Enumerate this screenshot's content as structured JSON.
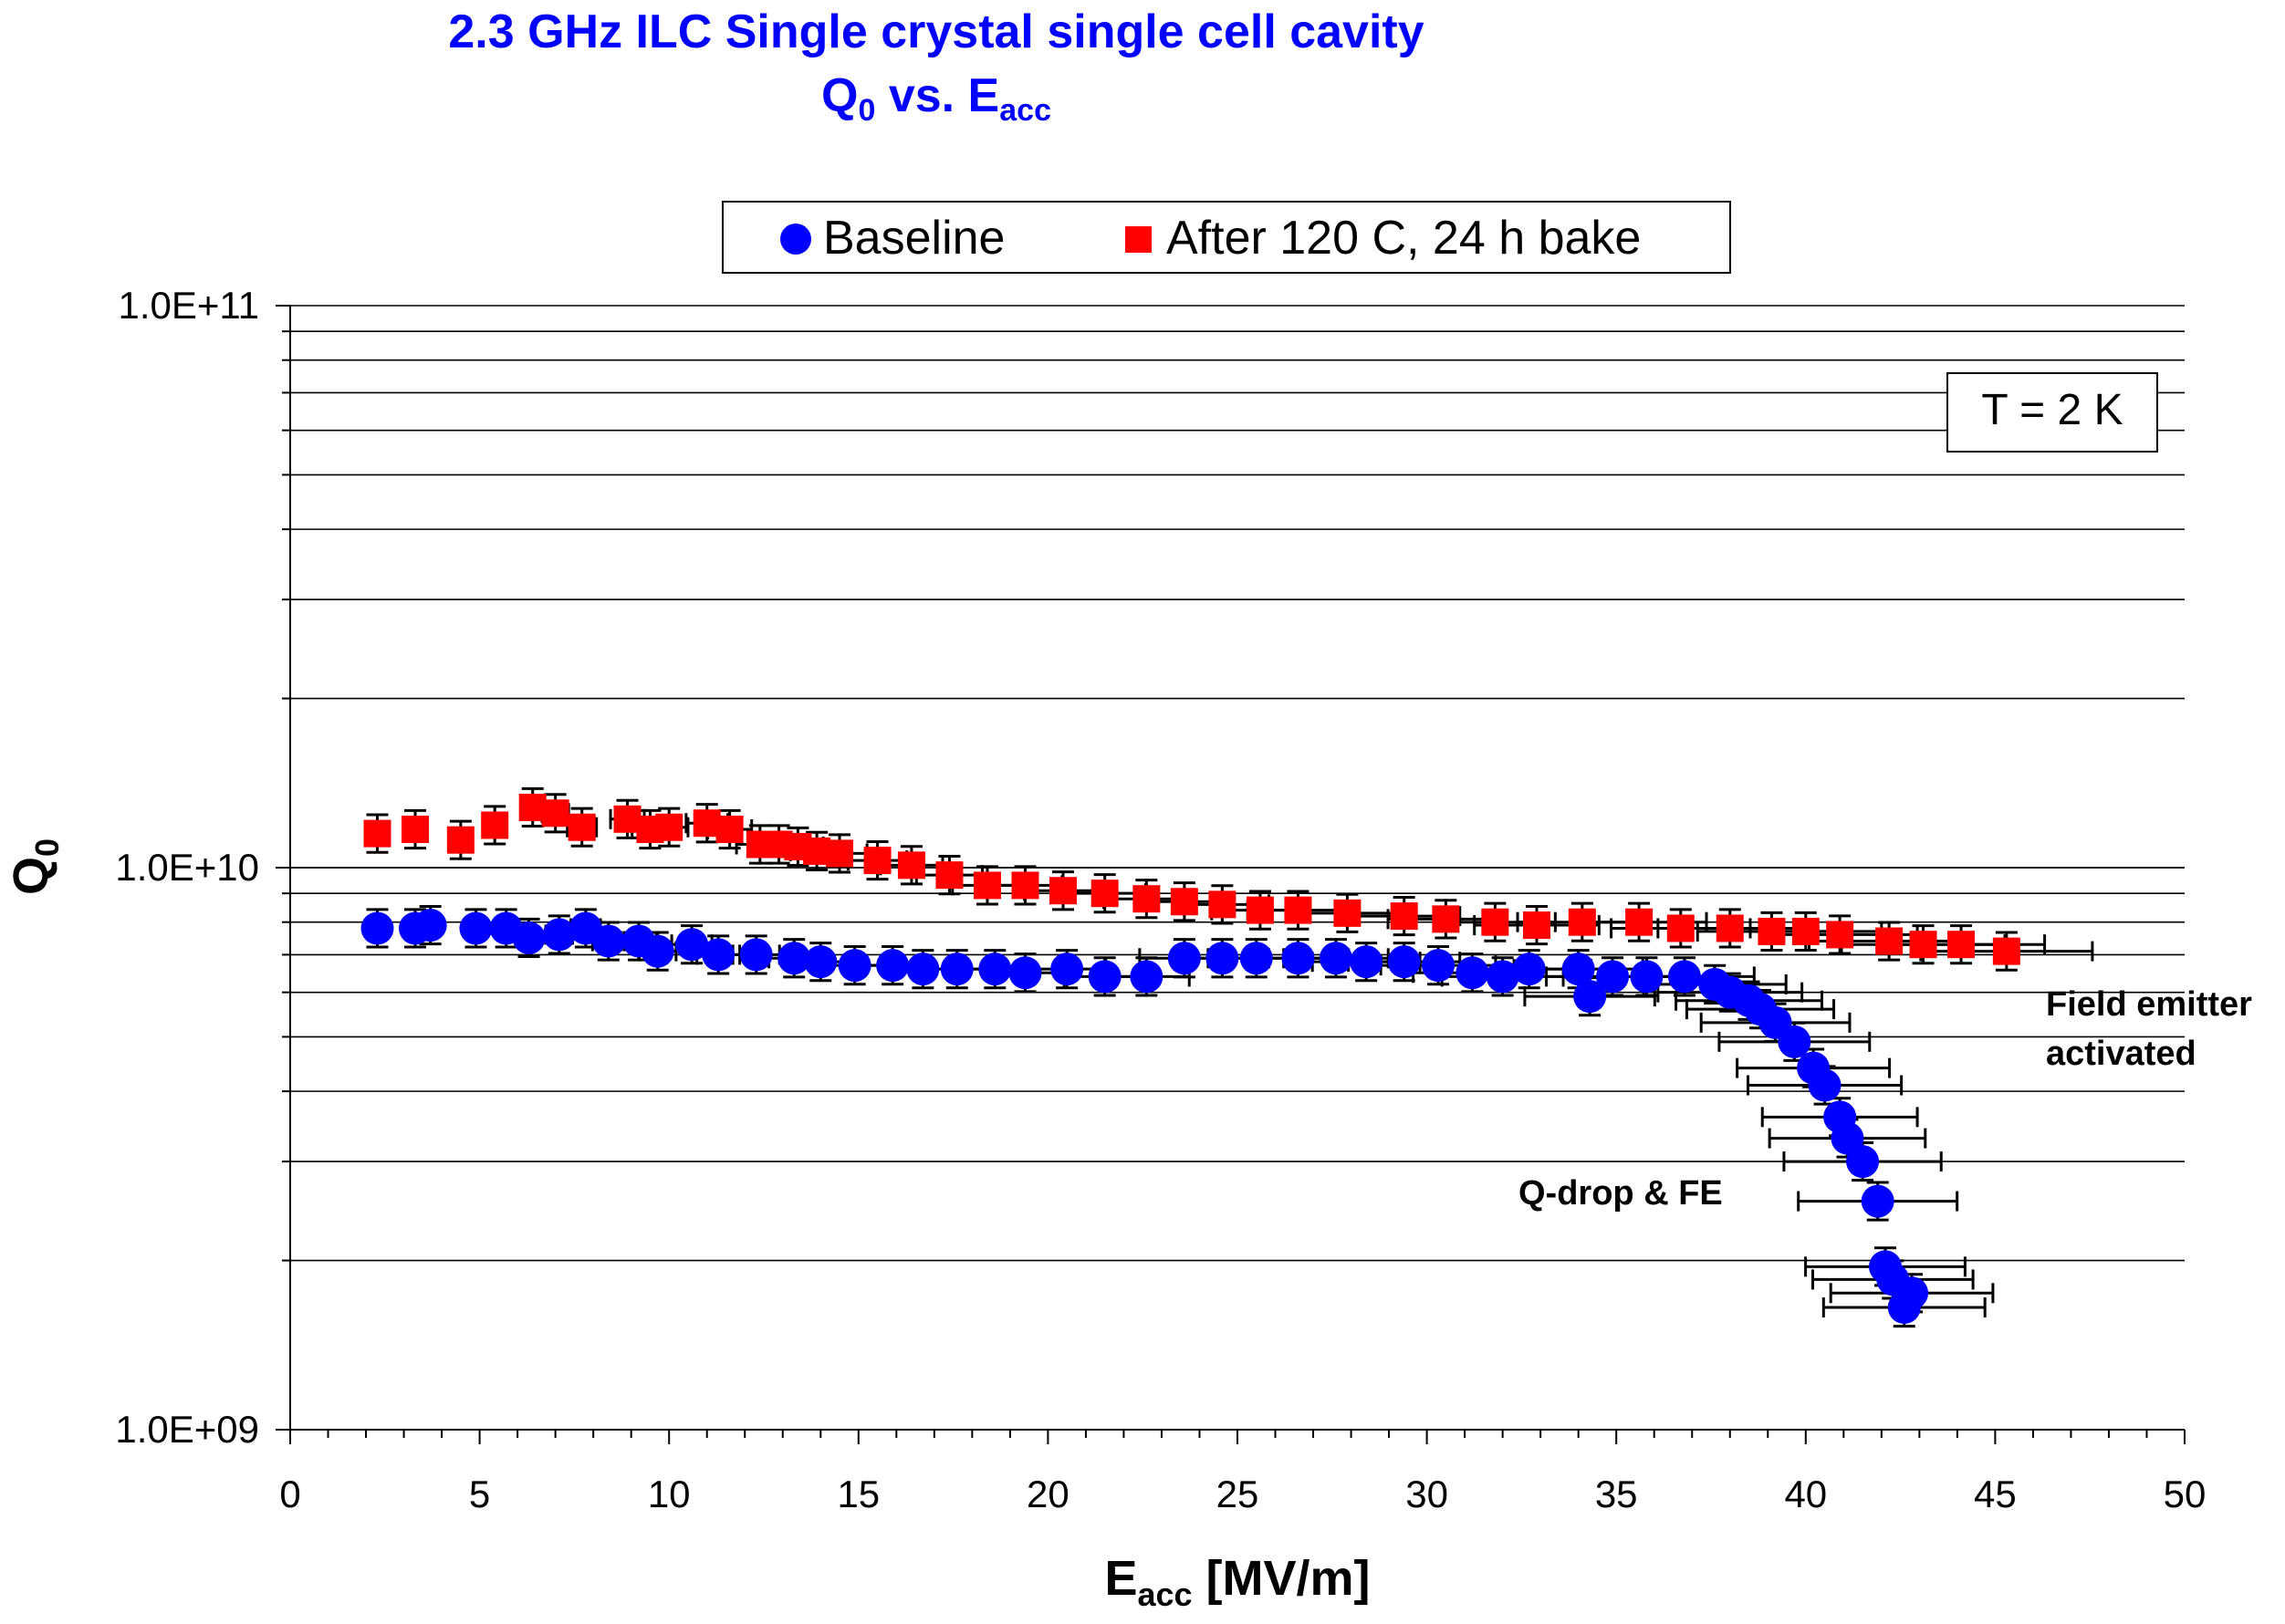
{
  "chart_data": {
    "type": "scatter",
    "title": "2.3 GHz ILC Single crystal single cell cavity",
    "subtitle": {
      "main": "Q",
      "sub": "0",
      "mid": " vs. E",
      "sub2": "acc"
    },
    "xlabel": {
      "main": "E",
      "sub": "acc",
      "rest": " [MV/m]"
    },
    "ylabel": {
      "main": "Q",
      "sub": "0"
    },
    "xlim": [
      0,
      50
    ],
    "ylim": [
      1000000000,
      100000000000
    ],
    "yscale": "log",
    "x_ticks": [
      "0",
      "5",
      "10",
      "15",
      "20",
      "25",
      "30",
      "35",
      "40",
      "45",
      "50"
    ],
    "y_ticks": [
      "1.0E+09",
      "1.0E+10",
      "1.0E+11"
    ],
    "grid": "horizontal",
    "legend_position": "top-center",
    "temperature_label": "T = 2 K",
    "annotations": {
      "field_emitter_line1": "Field emitter",
      "field_emitter_line2": "activated",
      "qdrop": "Q-drop & FE"
    },
    "series": [
      {
        "name": "Baseline",
        "marker": "circle",
        "color": "#0000ff",
        "points": [
          [
            2.3,
            7800000000.0
          ],
          [
            3.3,
            7800000000.0
          ],
          [
            3.7,
            7900000000.0
          ],
          [
            4.9,
            7800000000.0
          ],
          [
            5.7,
            7800000000.0
          ],
          [
            6.3,
            7500000000.0
          ],
          [
            7.1,
            7600000000.0
          ],
          [
            7.8,
            7800000000.0
          ],
          [
            8.4,
            7400000000.0
          ],
          [
            9.2,
            7400000000.0
          ],
          [
            9.7,
            7100000000.0
          ],
          [
            10.6,
            7300000000.0
          ],
          [
            11.3,
            7000000000.0
          ],
          [
            12.3,
            7000000000.0
          ],
          [
            13.3,
            6900000000.0
          ],
          [
            14.0,
            6800000000.0
          ],
          [
            14.9,
            6700000000.0
          ],
          [
            15.9,
            6700000000.0
          ],
          [
            16.7,
            6600000000.0
          ],
          [
            17.6,
            6600000000.0
          ],
          [
            18.6,
            6600000000.0
          ],
          [
            19.4,
            6500000000.0
          ],
          [
            20.5,
            6600000000.0
          ],
          [
            21.5,
            6400000000.0
          ],
          [
            22.6,
            6400000000.0
          ],
          [
            23.6,
            6900000000.0
          ],
          [
            24.6,
            6900000000.0
          ],
          [
            25.5,
            6900000000.0
          ],
          [
            26.6,
            6900000000.0
          ],
          [
            27.6,
            6900000000.0
          ],
          [
            28.4,
            6800000000.0
          ],
          [
            29.4,
            6800000000.0
          ],
          [
            30.3,
            6700000000.0
          ],
          [
            31.2,
            6500000000.0
          ],
          [
            32.0,
            6400000000.0
          ],
          [
            32.7,
            6600000000.0
          ],
          [
            34.0,
            6600000000.0
          ],
          [
            34.3,
            5900000000.0
          ],
          [
            34.9,
            6400000000.0
          ],
          [
            35.8,
            6400000000.0
          ],
          [
            36.8,
            6400000000.0
          ],
          [
            37.6,
            6200000000.0
          ],
          [
            38.0,
            6000000000.0
          ],
          [
            38.5,
            5800000000.0
          ],
          [
            38.8,
            5600000000.0
          ],
          [
            39.2,
            5300000000.0
          ],
          [
            39.7,
            4900000000.0
          ],
          [
            40.2,
            4400000000.0
          ],
          [
            40.5,
            4100000000.0
          ],
          [
            40.9,
            3600000000.0
          ],
          [
            41.1,
            3300000000.0
          ],
          [
            41.5,
            3000000000.0
          ],
          [
            41.9,
            2550000000.0
          ],
          [
            42.1,
            1950000000.0
          ],
          [
            42.3,
            1850000000.0
          ],
          [
            42.8,
            1750000000.0
          ],
          [
            42.6,
            1650000000.0
          ]
        ]
      },
      {
        "name": "After 120 C, 24 h bake",
        "marker": "square",
        "color": "#ff0000",
        "points": [
          [
            2.3,
            11500000000.0
          ],
          [
            3.3,
            11700000000.0
          ],
          [
            4.5,
            11200000000.0
          ],
          [
            5.4,
            11900000000.0
          ],
          [
            6.4,
            12800000000.0
          ],
          [
            7.0,
            12500000000.0
          ],
          [
            7.7,
            11800000000.0
          ],
          [
            8.9,
            12200000000.0
          ],
          [
            9.5,
            11700000000.0
          ],
          [
            10.0,
            11800000000.0
          ],
          [
            11.0,
            12000000000.0
          ],
          [
            11.6,
            11700000000.0
          ],
          [
            12.4,
            11000000000.0
          ],
          [
            12.9,
            11000000000.0
          ],
          [
            13.4,
            10900000000.0
          ],
          [
            13.9,
            10700000000.0
          ],
          [
            14.5,
            10600000000.0
          ],
          [
            15.5,
            10300000000.0
          ],
          [
            16.4,
            10100000000.0
          ],
          [
            17.4,
            9700000000.0
          ],
          [
            18.4,
            9300000000.0
          ],
          [
            19.4,
            9300000000.0
          ],
          [
            20.4,
            9100000000.0
          ],
          [
            21.5,
            9000000000.0
          ],
          [
            22.6,
            8800000000.0
          ],
          [
            23.6,
            8700000000.0
          ],
          [
            24.6,
            8600000000.0
          ],
          [
            25.6,
            8400000000.0
          ],
          [
            26.6,
            8400000000.0
          ],
          [
            27.9,
            8300000000.0
          ],
          [
            29.4,
            8200000000.0
          ],
          [
            30.5,
            8100000000.0
          ],
          [
            31.8,
            8000000000.0
          ],
          [
            32.9,
            7900000000.0
          ],
          [
            34.1,
            8000000000.0
          ],
          [
            35.6,
            8000000000.0
          ],
          [
            36.7,
            7800000000.0
          ],
          [
            38.0,
            7800000000.0
          ],
          [
            39.1,
            7700000000.0
          ],
          [
            40.0,
            7700000000.0
          ],
          [
            40.9,
            7600000000.0
          ],
          [
            42.2,
            7400000000.0
          ],
          [
            43.1,
            7300000000.0
          ],
          [
            44.1,
            7300000000.0
          ],
          [
            45.3,
            7100000000.0
          ]
        ]
      }
    ]
  }
}
